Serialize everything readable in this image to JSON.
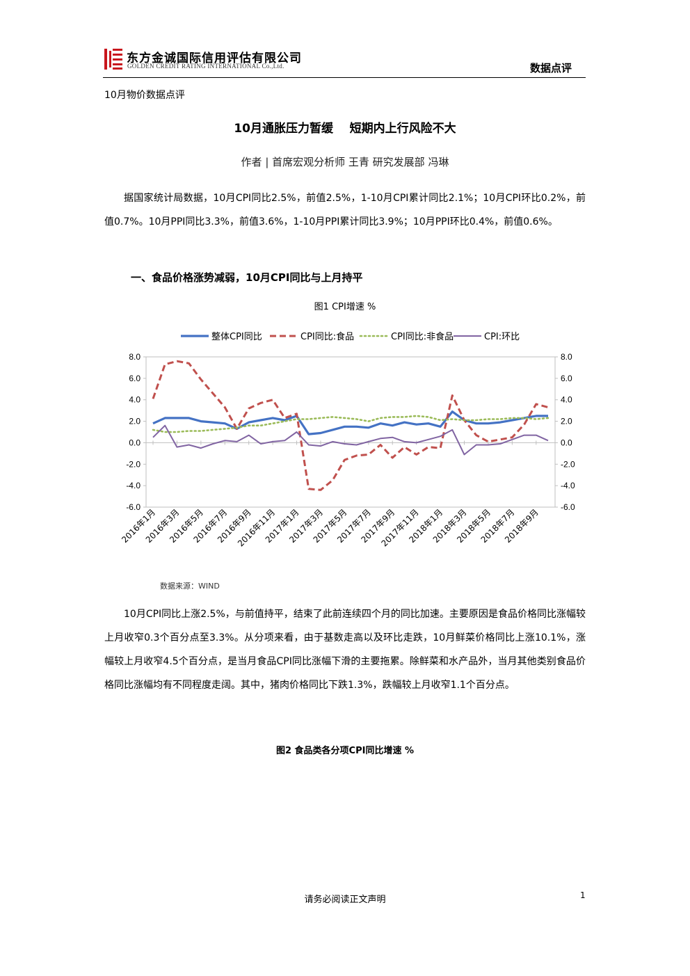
{
  "header": {
    "company_cn": "东方金诚国际信用评估有限公司",
    "company_en": "GOLDEN CREDIT RATING INTERNATIONAL Co.,Ltd.",
    "section": "数据点评",
    "brand_color": "#c8161d"
  },
  "doc": {
    "series_name": "10月物价数据点评",
    "title": "10月通胀压力暂缓    短期内上行风险不大",
    "authors": "作者 | 首席宏观分析师 王青 研究发展部 冯琳",
    "para1": "据国家统计局数据，10月CPI同比2.5%，前值2.5%，1-10月CPI累计同比2.1%；10月CPI环比0.2%，前值0.7%。10月PPI同比3.3%，前值3.6%，1-10月PPI累计同比3.9%；10月PPI环比0.4%，前值0.6%。",
    "heading1": "一、食品价格涨势减弱，10月CPI同比与上月持平",
    "fig1_caption": "图1  CPI增速  %",
    "fig1_source": "数据来源：WIND",
    "para2": "10月CPI同比上涨2.5%，与前值持平，结束了此前连续四个月的同比加速。主要原因是食品价格同比涨幅较上月收窄0.3个百分点至3.3%。从分项来看，由于基数走高以及环比走跌，10月鲜菜价格同比上涨10.1%，涨幅较上月收窄4.5个百分点，是当月食品CPI同比涨幅下滑的主要拖累。除鲜菜和水产品外，当月其他类别食品价格同比涨幅均有不同程度走阔。其中，猪肉价格同比下跌1.3%，跌幅较上月收窄1.1个百分点。",
    "fig2_caption": "图2  食品类各分项CPI同比增速 %"
  },
  "footer": {
    "note": "请务必阅读正文声明",
    "page": "1"
  },
  "chart_data": {
    "type": "line",
    "ylim": [
      -6,
      8
    ],
    "yticks": [
      "8.0",
      "6.0",
      "4.0",
      "2.0",
      "0.0",
      "-2.0",
      "-4.0",
      "-6.0"
    ],
    "ytick_values": [
      8,
      6,
      4,
      2,
      0,
      -2,
      -4,
      -6
    ],
    "xtick_labels": [
      "2016年1月",
      "2016年3月",
      "2016年5月",
      "2016年7月",
      "2016年9月",
      "2016年11月",
      "2017年1月",
      "2017年3月",
      "2017年5月",
      "2017年7月",
      "2017年9月",
      "2017年11月",
      "2018年1月",
      "2018年3月",
      "2018年5月",
      "2018年7月",
      "2018年9月"
    ],
    "months": [
      "2016-01",
      "2016-02",
      "2016-03",
      "2016-04",
      "2016-05",
      "2016-06",
      "2016-07",
      "2016-08",
      "2016-09",
      "2016-10",
      "2016-11",
      "2016-12",
      "2017-01",
      "2017-02",
      "2017-03",
      "2017-04",
      "2017-05",
      "2017-06",
      "2017-07",
      "2017-08",
      "2017-09",
      "2017-10",
      "2017-11",
      "2017-12",
      "2018-01",
      "2018-02",
      "2018-03",
      "2018-04",
      "2018-05",
      "2018-06",
      "2018-07",
      "2018-08",
      "2018-09",
      "2018-10"
    ],
    "legend_position": "top",
    "series": [
      {
        "name": "整体CPI同比",
        "color": "#4472c4",
        "style": "solid",
        "values": [
          1.8,
          2.3,
          2.3,
          2.3,
          2.0,
          1.9,
          1.8,
          1.3,
          1.9,
          2.1,
          2.3,
          2.1,
          2.5,
          0.8,
          0.9,
          1.2,
          1.5,
          1.5,
          1.4,
          1.8,
          1.6,
          1.9,
          1.7,
          1.8,
          1.5,
          2.9,
          2.1,
          1.8,
          1.8,
          1.9,
          2.1,
          2.3,
          2.5,
          2.5
        ]
      },
      {
        "name": "CPI同比:食品",
        "color": "#c0504d",
        "style": "dash",
        "values": [
          4.1,
          7.3,
          7.6,
          7.4,
          5.9,
          4.6,
          3.3,
          1.3,
          3.2,
          3.7,
          4.0,
          2.3,
          2.7,
          -4.3,
          -4.4,
          -3.5,
          -1.6,
          -1.2,
          -1.1,
          -0.2,
          -1.4,
          -0.4,
          -1.1,
          -0.4,
          -0.5,
          4.4,
          2.1,
          0.7,
          0.1,
          0.3,
          0.5,
          1.7,
          3.6,
          3.3
        ]
      },
      {
        "name": "CPI同比:非食品",
        "color": "#9bbb59",
        "style": "dot",
        "values": [
          1.2,
          1.0,
          1.0,
          1.1,
          1.1,
          1.2,
          1.3,
          1.4,
          1.6,
          1.6,
          1.8,
          2.0,
          2.2,
          2.2,
          2.3,
          2.4,
          2.3,
          2.2,
          2.0,
          2.3,
          2.4,
          2.4,
          2.5,
          2.4,
          2.1,
          2.2,
          2.1,
          2.1,
          2.2,
          2.2,
          2.3,
          2.3,
          2.2,
          2.3
        ]
      },
      {
        "name": "CPI:环比",
        "color": "#8064a2",
        "style": "solid",
        "values": [
          0.5,
          1.6,
          -0.4,
          -0.2,
          -0.5,
          -0.1,
          0.2,
          0.1,
          0.7,
          -0.1,
          0.1,
          0.2,
          1.0,
          -0.2,
          -0.3,
          0.1,
          -0.1,
          -0.2,
          0.1,
          0.4,
          0.5,
          0.1,
          0.0,
          0.3,
          0.6,
          1.2,
          -1.1,
          -0.2,
          -0.2,
          -0.1,
          0.3,
          0.7,
          0.7,
          0.2
        ]
      }
    ]
  }
}
